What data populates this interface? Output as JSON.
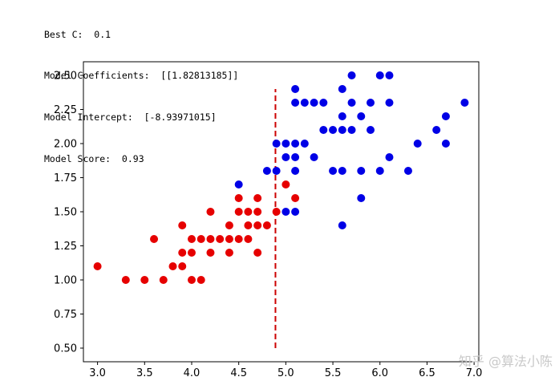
{
  "console": {
    "lines": [
      "Best C:  0.1",
      "Model Coefficients:  [[1.82813185]]",
      "Model Intercept:  [-8.93971015]",
      "Model Score:  0.93"
    ]
  },
  "chart_data": {
    "type": "scatter",
    "title": "",
    "xlabel": "",
    "ylabel": "",
    "xlim": [
      2.85,
      7.05
    ],
    "ylim": [
      0.4,
      2.6
    ],
    "grid": false,
    "x_ticks": [
      3.0,
      3.5,
      4.0,
      4.5,
      5.0,
      5.5,
      6.0,
      6.5,
      7.0
    ],
    "x_tick_labels": [
      "3.0",
      "3.5",
      "4.0",
      "4.5",
      "5.0",
      "5.5",
      "6.0",
      "6.5",
      "7.0"
    ],
    "y_ticks": [
      0.5,
      0.75,
      1.0,
      1.25,
      1.5,
      1.75,
      2.0,
      2.25,
      2.5
    ],
    "y_tick_labels": [
      "0.50",
      "0.75",
      "1.00",
      "1.25",
      "1.50",
      "1.75",
      "2.00",
      "2.25",
      "2.50"
    ],
    "series": [
      {
        "color": "#e60000",
        "points": [
          [
            3.0,
            1.1
          ],
          [
            3.3,
            1.0
          ],
          [
            3.5,
            1.0
          ],
          [
            3.6,
            1.3
          ],
          [
            3.7,
            1.0
          ],
          [
            3.8,
            1.1
          ],
          [
            3.9,
            1.1
          ],
          [
            3.9,
            1.2
          ],
          [
            3.9,
            1.4
          ],
          [
            4.0,
            1.0
          ],
          [
            4.0,
            1.2
          ],
          [
            4.0,
            1.3
          ],
          [
            4.1,
            1.0
          ],
          [
            4.1,
            1.3
          ],
          [
            4.2,
            1.2
          ],
          [
            4.2,
            1.3
          ],
          [
            4.2,
            1.5
          ],
          [
            4.3,
            1.3
          ],
          [
            4.4,
            1.2
          ],
          [
            4.4,
            1.3
          ],
          [
            4.4,
            1.4
          ],
          [
            4.5,
            1.3
          ],
          [
            4.5,
            1.5
          ],
          [
            4.5,
            1.6
          ],
          [
            4.6,
            1.3
          ],
          [
            4.6,
            1.4
          ],
          [
            4.6,
            1.5
          ],
          [
            4.7,
            1.2
          ],
          [
            4.7,
            1.4
          ],
          [
            4.7,
            1.5
          ],
          [
            4.7,
            1.6
          ],
          [
            4.8,
            1.4
          ],
          [
            4.9,
            1.5
          ],
          [
            5.0,
            1.7
          ],
          [
            5.1,
            1.6
          ]
        ]
      },
      {
        "color": "#0000e6",
        "points": [
          [
            4.5,
            1.7
          ],
          [
            4.8,
            1.8
          ],
          [
            4.9,
            1.8
          ],
          [
            4.9,
            2.0
          ],
          [
            5.0,
            1.5
          ],
          [
            5.0,
            1.9
          ],
          [
            5.0,
            2.0
          ],
          [
            5.1,
            1.5
          ],
          [
            5.1,
            1.8
          ],
          [
            5.1,
            1.9
          ],
          [
            5.1,
            2.0
          ],
          [
            5.1,
            2.3
          ],
          [
            5.1,
            2.4
          ],
          [
            5.2,
            2.0
          ],
          [
            5.2,
            2.3
          ],
          [
            5.3,
            1.9
          ],
          [
            5.3,
            2.3
          ],
          [
            5.4,
            2.1
          ],
          [
            5.4,
            2.3
          ],
          [
            5.5,
            1.8
          ],
          [
            5.5,
            2.1
          ],
          [
            5.6,
            1.4
          ],
          [
            5.6,
            1.8
          ],
          [
            5.6,
            2.1
          ],
          [
            5.6,
            2.2
          ],
          [
            5.6,
            2.4
          ],
          [
            5.7,
            2.1
          ],
          [
            5.7,
            2.3
          ],
          [
            5.7,
            2.5
          ],
          [
            5.8,
            1.6
          ],
          [
            5.8,
            1.8
          ],
          [
            5.8,
            2.2
          ],
          [
            5.9,
            2.1
          ],
          [
            5.9,
            2.3
          ],
          [
            6.0,
            1.8
          ],
          [
            6.0,
            2.5
          ],
          [
            6.1,
            1.9
          ],
          [
            6.1,
            2.3
          ],
          [
            6.1,
            2.5
          ],
          [
            6.3,
            1.8
          ],
          [
            6.4,
            2.0
          ],
          [
            6.6,
            2.1
          ],
          [
            6.7,
            2.0
          ],
          [
            6.7,
            2.2
          ],
          [
            6.9,
            2.3
          ]
        ]
      }
    ],
    "decision_boundary": {
      "x": 4.89,
      "y_range": [
        0.5,
        2.4
      ],
      "color": "#cc0000",
      "style": "dashed"
    }
  },
  "watermark": {
    "text": "知乎 @算法小陈"
  }
}
